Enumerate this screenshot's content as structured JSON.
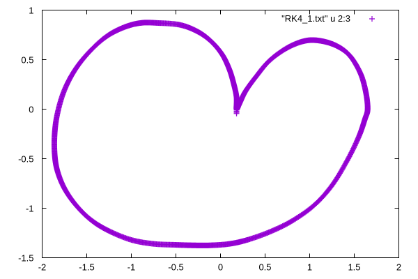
{
  "chart_data": {
    "type": "scatter",
    "title": "",
    "xlabel": "",
    "ylabel": "",
    "xlim": [
      -2,
      2
    ],
    "ylim": [
      -1.5,
      1
    ],
    "xticks": [
      "-2",
      "-1.5",
      "-1",
      "-0.5",
      "0",
      "0.5",
      "1",
      "1.5",
      "2"
    ],
    "yticks": [
      "1",
      "0.5",
      "0",
      "-0.5",
      "-1",
      "-1.5"
    ],
    "grid": false,
    "legend_position": "top-right",
    "series": [
      {
        "name": "\"RK4_1.txt\" u 2:3",
        "color": "#9400d3",
        "marker": "plus",
        "x": [
          0.18,
          0.15,
          0.1,
          0.02,
          -0.1,
          -0.25,
          -0.45,
          -0.7,
          -0.9,
          -1.1,
          -1.3,
          -1.5,
          -1.65,
          -1.76,
          -1.83,
          -1.86,
          -1.86,
          -1.83,
          -1.75,
          -1.62,
          -1.45,
          -1.25,
          -1.0,
          -0.75,
          -0.5,
          -0.3,
          -0.12,
          0.1,
          0.3,
          0.55,
          0.8,
          1.05,
          1.25,
          1.42,
          1.55,
          1.62,
          1.65,
          1.63,
          1.57,
          1.45,
          1.3,
          1.12,
          0.95,
          0.75,
          0.55,
          0.4,
          0.28,
          0.21,
          0.18
        ],
        "y": [
          0.12,
          0.25,
          0.4,
          0.55,
          0.68,
          0.78,
          0.85,
          0.87,
          0.87,
          0.82,
          0.72,
          0.55,
          0.37,
          0.17,
          -0.05,
          -0.25,
          -0.45,
          -0.62,
          -0.8,
          -0.97,
          -1.12,
          -1.23,
          -1.32,
          -1.36,
          -1.37,
          -1.375,
          -1.375,
          -1.36,
          -1.32,
          -1.24,
          -1.13,
          -0.97,
          -0.77,
          -0.52,
          -0.28,
          -0.1,
          0.0,
          0.17,
          0.36,
          0.54,
          0.64,
          0.69,
          0.69,
          0.62,
          0.49,
          0.33,
          0.18,
          0.05,
          0.0
        ]
      }
    ]
  }
}
